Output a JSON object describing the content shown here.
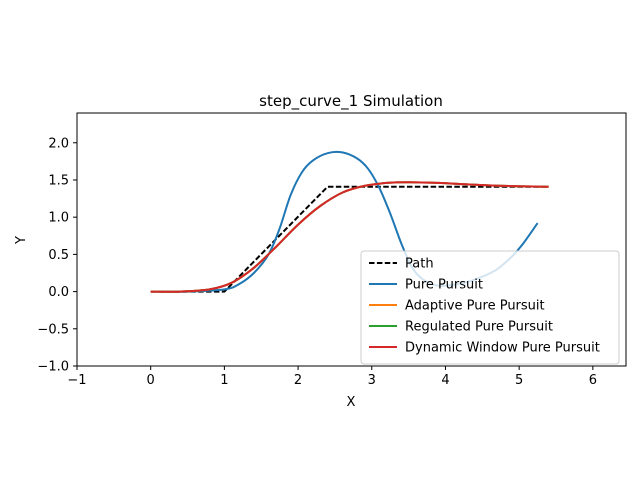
{
  "chart_data": {
    "type": "line",
    "title": "step_curve_1 Simulation",
    "xlabel": "X",
    "ylabel": "Y",
    "xlim": [
      -1,
      6.45
    ],
    "ylim": [
      -1,
      2.4
    ],
    "xticks": [
      -1,
      0,
      1,
      2,
      3,
      4,
      5,
      6
    ],
    "yticks": [
      -1.0,
      -0.5,
      0.0,
      0.5,
      1.0,
      1.5,
      2.0
    ],
    "xtick_labels": [
      "−1",
      "0",
      "1",
      "2",
      "3",
      "4",
      "5",
      "6"
    ],
    "ytick_labels": [
      "−1.0",
      "−0.5",
      "0.0",
      "0.5",
      "1.0",
      "1.5",
      "2.0"
    ],
    "grid": false,
    "legend_position": "lower-right",
    "series": [
      {
        "name": "Path",
        "color": "#000000",
        "style": "dashed",
        "x": [
          0,
          1.0,
          2.4,
          5.4
        ],
        "y": [
          0,
          0,
          1.41,
          1.41
        ]
      },
      {
        "name": "Pure Pursuit",
        "color": "#1f77b4",
        "style": "solid",
        "x": [
          0,
          0.5,
          1.0,
          1.2,
          1.4,
          1.6,
          1.75,
          1.9,
          2.05,
          2.2,
          2.4,
          2.6,
          2.8,
          2.95,
          3.1,
          3.25,
          3.4,
          3.55,
          3.7,
          3.9,
          4.1,
          4.3,
          4.5,
          4.7,
          4.9,
          5.05,
          5.25
        ],
        "y": [
          0,
          0.0,
          0.03,
          0.1,
          0.25,
          0.5,
          0.85,
          1.3,
          1.6,
          1.76,
          1.86,
          1.87,
          1.79,
          1.65,
          1.4,
          1.05,
          0.65,
          0.32,
          0.16,
          0.08,
          0.09,
          0.13,
          0.2,
          0.3,
          0.47,
          0.64,
          0.92
        ]
      },
      {
        "name": "Adaptive Pure Pursuit",
        "color": "#ff7f0e",
        "style": "solid",
        "x": [
          0,
          0.4,
          0.8,
          1.1,
          1.4,
          1.7,
          2.0,
          2.3,
          2.6,
          2.9,
          3.2,
          3.5,
          3.9,
          4.3,
          4.8,
          5.4
        ],
        "y": [
          0,
          0.0,
          0.03,
          0.12,
          0.32,
          0.6,
          0.9,
          1.15,
          1.33,
          1.42,
          1.46,
          1.47,
          1.46,
          1.44,
          1.42,
          1.41
        ]
      },
      {
        "name": "Regulated Pure Pursuit",
        "color": "#2ca02c",
        "style": "solid",
        "x": [
          0,
          0.4,
          0.8,
          1.1,
          1.4,
          1.7,
          2.0,
          2.3,
          2.6,
          2.9,
          3.2,
          3.5,
          3.9,
          4.3,
          4.8,
          5.4
        ],
        "y": [
          0,
          0.0,
          0.03,
          0.12,
          0.32,
          0.6,
          0.9,
          1.15,
          1.33,
          1.42,
          1.46,
          1.47,
          1.46,
          1.44,
          1.42,
          1.41
        ]
      },
      {
        "name": "Dynamic Window Pure Pursuit",
        "color": "#d62728",
        "style": "solid",
        "x": [
          0,
          0.4,
          0.8,
          1.1,
          1.4,
          1.7,
          2.0,
          2.3,
          2.6,
          2.9,
          3.2,
          3.5,
          3.9,
          4.3,
          4.8,
          5.4
        ],
        "y": [
          0,
          0.0,
          0.03,
          0.12,
          0.32,
          0.6,
          0.9,
          1.15,
          1.33,
          1.42,
          1.46,
          1.47,
          1.46,
          1.44,
          1.42,
          1.41
        ]
      }
    ]
  }
}
